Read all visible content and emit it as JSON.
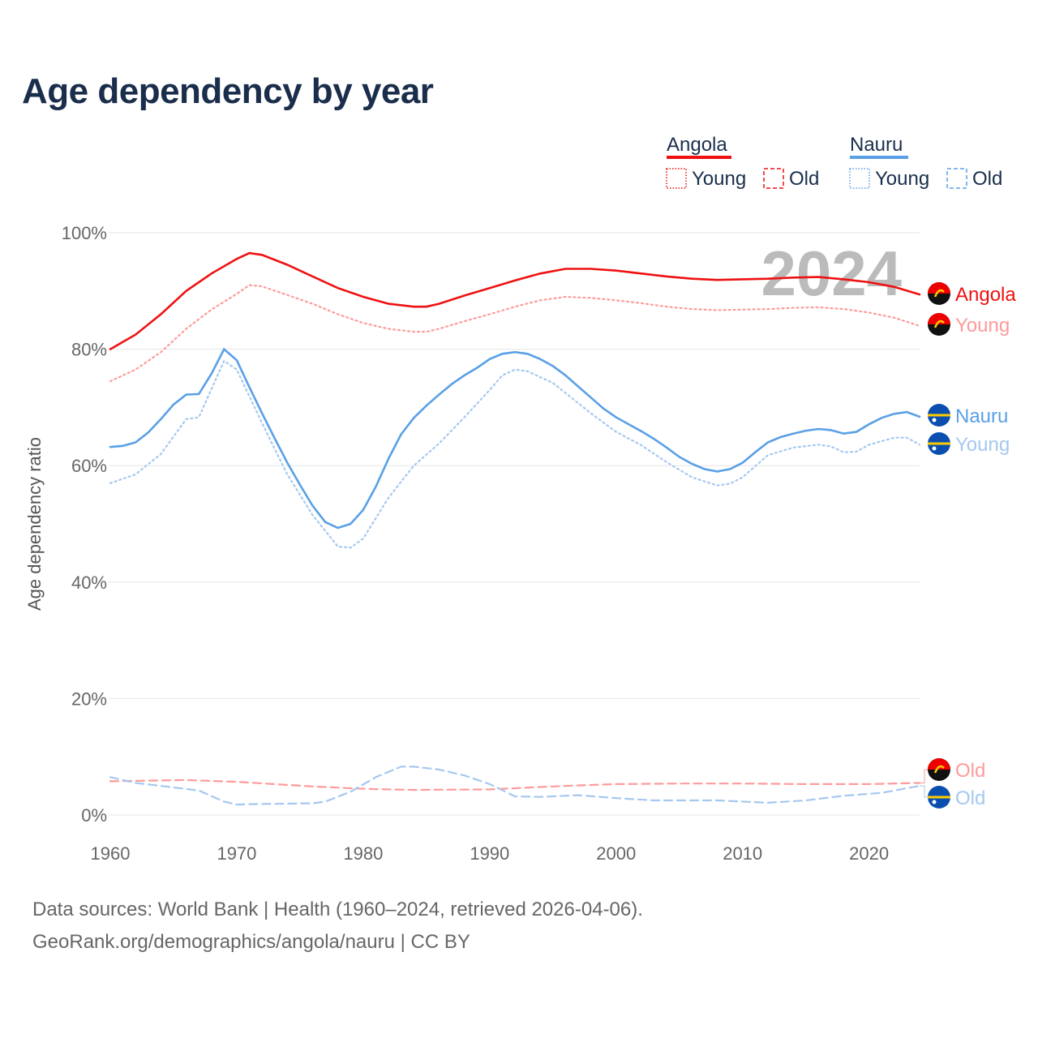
{
  "title": "Age dependency by year",
  "source_line1": "Data sources: World Bank | Health (1960–2024, retrieved 2026-04-06).",
  "source_line2": "GeoRank.org/demographics/angola/nauru | CC BY",
  "year_watermark": "2024",
  "colors": {
    "angola": "#ee1111",
    "angola_light": "#ff9a9a",
    "nauru": "#5aa0e6",
    "nauru_light": "#a5c8f0"
  },
  "legend": {
    "groups": [
      {
        "name": "Angola",
        "items": [
          "Young",
          "Old"
        ]
      },
      {
        "name": "Nauru",
        "items": [
          "Young",
          "Old"
        ]
      }
    ]
  },
  "chart_data": {
    "type": "line",
    "title": "Age dependency by year",
    "xlabel": "",
    "ylabel": "Age dependency ratio",
    "xlim": [
      1960,
      2024
    ],
    "ylim": [
      0,
      100
    ],
    "xticks": [
      "1960",
      "1970",
      "1980",
      "1990",
      "2000",
      "2010",
      "2020"
    ],
    "yticks": [
      "0%",
      "20%",
      "40%",
      "60%",
      "80%",
      "100%"
    ],
    "grid": true,
    "series": [
      {
        "name": "Angola",
        "end_label": "Angola",
        "country": "angola",
        "style": "solid",
        "x": [
          1960,
          1962,
          1964,
          1966,
          1968,
          1970,
          1971,
          1972,
          1974,
          1976,
          1978,
          1980,
          1982,
          1984,
          1985,
          1986,
          1988,
          1990,
          1992,
          1994,
          1996,
          1998,
          2000,
          2002,
          2004,
          2006,
          2008,
          2010,
          2012,
          2014,
          2016,
          2018,
          2020,
          2022,
          2024
        ],
        "y": [
          80,
          82.5,
          86,
          90,
          93,
          95.5,
          96.5,
          96.2,
          94.5,
          92.5,
          90.5,
          89,
          87.8,
          87.3,
          87.3,
          87.8,
          89.2,
          90.5,
          91.8,
          93,
          93.8,
          93.8,
          93.5,
          93,
          92.5,
          92.1,
          91.9,
          92,
          92.1,
          92.3,
          92.4,
          92,
          91.5,
          90.7,
          89.4
        ]
      },
      {
        "name": "Angola Young",
        "end_label": "Young",
        "country": "angola",
        "style": "dotted",
        "x": [
          1960,
          1962,
          1964,
          1966,
          1968,
          1970,
          1971,
          1972,
          1974,
          1976,
          1978,
          1980,
          1982,
          1984,
          1985,
          1986,
          1988,
          1990,
          1992,
          1994,
          1996,
          1998,
          2000,
          2002,
          2004,
          2006,
          2008,
          2010,
          2012,
          2014,
          2016,
          2018,
          2020,
          2022,
          2024
        ],
        "y": [
          74.5,
          76.5,
          79.5,
          83.5,
          86.8,
          89.5,
          91,
          90.8,
          89.3,
          87.8,
          86,
          84.5,
          83.5,
          83,
          83,
          83.5,
          84.8,
          86,
          87.3,
          88.4,
          89,
          88.8,
          88.4,
          87.9,
          87.3,
          86.9,
          86.7,
          86.8,
          86.9,
          87.1,
          87.2,
          86.9,
          86.3,
          85.4,
          84
        ]
      },
      {
        "name": "Angola Old",
        "end_label": "Old",
        "country": "angola",
        "style": "dashed",
        "x": [
          1960,
          1966,
          1970,
          1976,
          1980,
          1984,
          1990,
          1996,
          2000,
          2005,
          2010,
          2015,
          2020,
          2024
        ],
        "y": [
          5.8,
          6,
          5.7,
          4.9,
          4.5,
          4.3,
          4.4,
          5,
          5.3,
          5.4,
          5.4,
          5.3,
          5.3,
          5.5
        ]
      },
      {
        "name": "Nauru",
        "end_label": "Nauru",
        "country": "nauru",
        "style": "solid",
        "x": [
          1960,
          1961,
          1962,
          1963,
          1964,
          1965,
          1966,
          1967,
          1968,
          1969,
          1970,
          1971,
          1972,
          1973,
          1974,
          1975,
          1976,
          1977,
          1978,
          1979,
          1980,
          1981,
          1982,
          1983,
          1984,
          1985,
          1986,
          1987,
          1988,
          1989,
          1990,
          1991,
          1992,
          1993,
          1994,
          1995,
          1996,
          1997,
          1998,
          1999,
          2000,
          2001,
          2002,
          2003,
          2004,
          2005,
          2006,
          2007,
          2008,
          2009,
          2010,
          2011,
          2012,
          2013,
          2014,
          2015,
          2016,
          2017,
          2018,
          2019,
          2020,
          2021,
          2022,
          2023,
          2024
        ],
        "y": [
          63.2,
          63.4,
          64,
          65.7,
          68,
          70.5,
          72.2,
          72.3,
          75.8,
          80,
          78.1,
          73.5,
          69,
          64.7,
          60.5,
          56.7,
          53.1,
          50.3,
          49.3,
          50,
          52.4,
          56.4,
          61.2,
          65.4,
          68.2,
          70.3,
          72.2,
          74,
          75.5,
          76.8,
          78.3,
          79.2,
          79.5,
          79.2,
          78.3,
          77.1,
          75.5,
          73.6,
          71.7,
          69.8,
          68.3,
          67.1,
          65.9,
          64.6,
          63.1,
          61.5,
          60.3,
          59.4,
          59,
          59.4,
          60.5,
          62.3,
          64,
          64.9,
          65.5,
          66,
          66.3,
          66.1,
          65.5,
          65.8,
          67.1,
          68.2,
          68.9,
          69.2,
          68.4
        ]
      },
      {
        "name": "Nauru Young",
        "end_label": "Young",
        "country": "nauru",
        "style": "dotted",
        "x": [
          1960,
          1962,
          1964,
          1966,
          1967,
          1969,
          1970,
          1972,
          1974,
          1976,
          1978,
          1979,
          1980,
          1982,
          1984,
          1986,
          1988,
          1990,
          1991,
          1992,
          1993,
          1995,
          1998,
          2000,
          2002,
          2004,
          2006,
          2008,
          2009,
          2010,
          2012,
          2014,
          2016,
          2017,
          2018,
          2019,
          2020,
          2022,
          2023,
          2024
        ],
        "y": [
          57,
          58.5,
          62,
          68,
          68.3,
          78,
          76.5,
          67.3,
          58.5,
          51.5,
          46.1,
          45.9,
          47.5,
          54.5,
          60,
          63.8,
          68.3,
          73,
          75.5,
          76.5,
          76.2,
          74.2,
          69,
          65.8,
          63.5,
          60.6,
          58,
          56.6,
          56.9,
          58,
          61.8,
          63.1,
          63.6,
          63.3,
          62.3,
          62.4,
          63.6,
          64.8,
          64.8,
          63.6
        ]
      },
      {
        "name": "Nauru Old",
        "end_label": "Old",
        "country": "nauru",
        "style": "dashed",
        "x": [
          1960,
          1962,
          1964,
          1967,
          1969,
          1970,
          1972,
          1976,
          1977,
          1979,
          1981,
          1983,
          1984,
          1986,
          1988,
          1990,
          1992,
          1994,
          1997,
          2000,
          2003,
          2008,
          2012,
          2015,
          2018,
          2021,
          2024
        ],
        "y": [
          6.5,
          5.5,
          5,
          4.2,
          2.3,
          1.8,
          1.9,
          2,
          2.3,
          4,
          6.5,
          8.3,
          8.3,
          7.8,
          6.8,
          5.3,
          3.2,
          3.1,
          3.4,
          2.9,
          2.5,
          2.5,
          2.1,
          2.5,
          3.3,
          3.8,
          5
        ]
      }
    ]
  }
}
